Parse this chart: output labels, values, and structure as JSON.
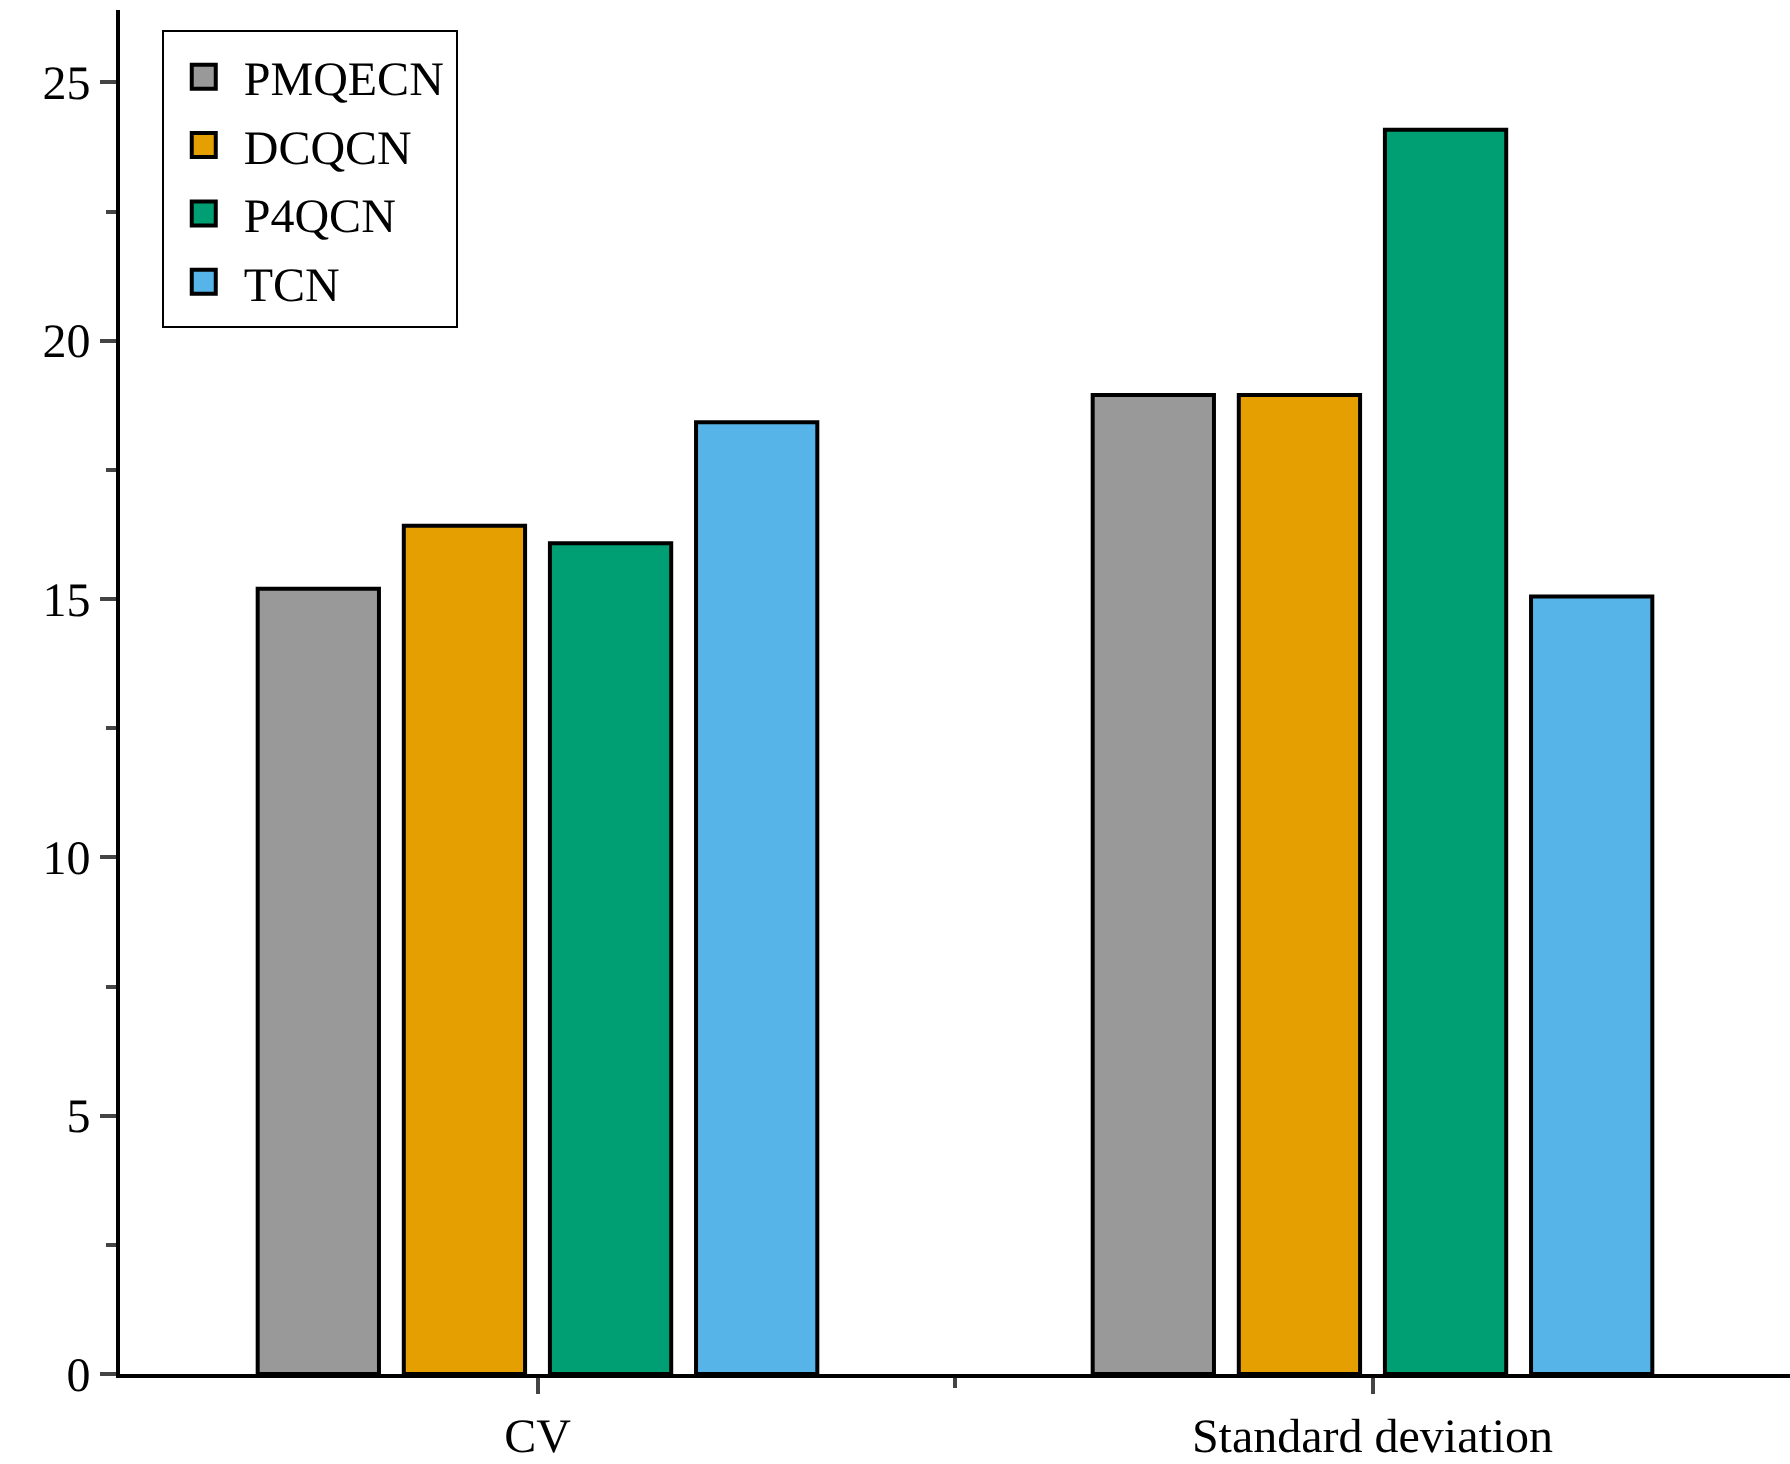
{
  "chart_data": {
    "type": "bar",
    "categories": [
      "CV",
      "Standard deviation"
    ],
    "series": [
      {
        "name": "PMQECN",
        "color": "#999999",
        "values": [
          15.2,
          18.95
        ]
      },
      {
        "name": "DCQCN",
        "color": "#e69f00",
        "values": [
          16.42,
          18.95
        ]
      },
      {
        "name": "P4QCN",
        "color": "#009e73",
        "values": [
          16.08,
          24.08
        ]
      },
      {
        "name": "TCN",
        "color": "#56b4e9",
        "values": [
          18.42,
          15.05
        ]
      }
    ],
    "ylim": [
      0,
      26.4
    ],
    "yticks": [
      0,
      5,
      10,
      15,
      20,
      25
    ],
    "legend": "top left"
  }
}
